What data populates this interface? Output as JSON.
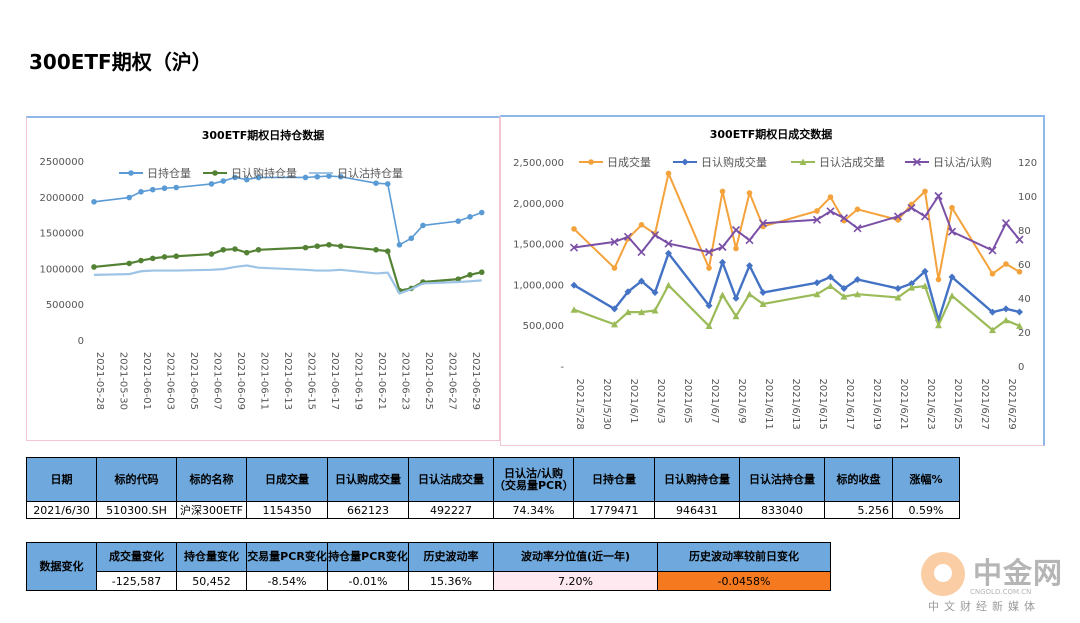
{
  "page": {
    "title": "300ETF期权（沪）"
  },
  "chart_data": [
    {
      "type": "line",
      "title": "300ETF期权日持仓数据",
      "ylim": [
        0,
        2500000
      ],
      "yticks": [
        "0",
        "500000",
        "1000000",
        "1500000",
        "2000000",
        "2500000"
      ],
      "x_tick_labels": [
        "2021-05-28",
        "2021-05-30",
        "2021-06-01",
        "2021-06-03",
        "2021-06-05",
        "2021-06-07",
        "2021-06-09",
        "2021-06-11",
        "2021-06-13",
        "2021-06-15",
        "2021-06-17",
        "2021-06-19",
        "2021-06-21",
        "2021-06-23",
        "2021-06-25",
        "2021-06-27",
        "2021-06-29"
      ],
      "series": [
        {
          "name": "日持仓量",
          "color": "#5b9bd5",
          "x": [
            "2021-05-28",
            "2021-05-31",
            "2021-06-01",
            "2021-06-02",
            "2021-06-03",
            "2021-06-04",
            "2021-06-07",
            "2021-06-08",
            "2021-06-09",
            "2021-06-10",
            "2021-06-11",
            "2021-06-15",
            "2021-06-16",
            "2021-06-17",
            "2021-06-18",
            "2021-06-21",
            "2021-06-22",
            "2021-06-23",
            "2021-06-24",
            "2021-06-25",
            "2021-06-28",
            "2021-06-29",
            "2021-06-30"
          ],
          "values": [
            1930000,
            1990000,
            2070000,
            2100000,
            2120000,
            2130000,
            2180000,
            2220000,
            2270000,
            2240000,
            2270000,
            2270000,
            2280000,
            2290000,
            2280000,
            2190000,
            2180000,
            1330000,
            1420000,
            1600000,
            1660000,
            1720000,
            1780000
          ]
        },
        {
          "name": "日认购持仓量",
          "color": "#548235",
          "x": [
            "2021-05-28",
            "2021-05-31",
            "2021-06-01",
            "2021-06-02",
            "2021-06-03",
            "2021-06-04",
            "2021-06-07",
            "2021-06-08",
            "2021-06-09",
            "2021-06-10",
            "2021-06-11",
            "2021-06-15",
            "2021-06-16",
            "2021-06-17",
            "2021-06-18",
            "2021-06-21",
            "2021-06-22",
            "2021-06-23",
            "2021-06-24",
            "2021-06-25",
            "2021-06-28",
            "2021-06-29",
            "2021-06-30"
          ],
          "values": [
            1020000,
            1070000,
            1110000,
            1140000,
            1160000,
            1170000,
            1200000,
            1260000,
            1270000,
            1220000,
            1260000,
            1290000,
            1310000,
            1330000,
            1310000,
            1260000,
            1240000,
            690000,
            720000,
            810000,
            850000,
            910000,
            946431
          ]
        },
        {
          "name": "日认沽持仓量",
          "color": "#9dc3e6",
          "x": [
            "2021-05-28",
            "2021-05-31",
            "2021-06-01",
            "2021-06-02",
            "2021-06-03",
            "2021-06-04",
            "2021-06-07",
            "2021-06-08",
            "2021-06-09",
            "2021-06-10",
            "2021-06-11",
            "2021-06-15",
            "2021-06-16",
            "2021-06-17",
            "2021-06-18",
            "2021-06-21",
            "2021-06-22",
            "2021-06-23",
            "2021-06-24",
            "2021-06-25",
            "2021-06-28",
            "2021-06-29",
            "2021-06-30"
          ],
          "values": [
            910000,
            920000,
            960000,
            970000,
            970000,
            970000,
            980000,
            990000,
            1020000,
            1040000,
            1010000,
            980000,
            970000,
            970000,
            980000,
            930000,
            940000,
            650000,
            710000,
            790000,
            810000,
            820000,
            833040
          ]
        }
      ]
    },
    {
      "type": "line",
      "title": "300ETF期权日成交数据",
      "ylim": [
        0,
        2500000
      ],
      "yticks": [
        "-",
        "500,000",
        "1,000,000",
        "1,500,000",
        "2,000,000",
        "2,500,000"
      ],
      "y2lim": [
        0,
        120
      ],
      "y2ticks": [
        "0",
        "20",
        "40",
        "60",
        "80",
        "100",
        "120"
      ],
      "x_tick_labels": [
        "2021/5/28",
        "2021/5/30",
        "2021/6/1",
        "2021/6/3",
        "2021/6/5",
        "2021/6/7",
        "2021/6/9",
        "2021/6/11",
        "2021/6/13",
        "2021/6/15",
        "2021/6/17",
        "2021/6/19",
        "2021/6/21",
        "2021/6/23",
        "2021/6/25",
        "2021/6/27",
        "2021/6/29"
      ],
      "series": [
        {
          "name": "日成交量",
          "color": "#f4a23c",
          "axis": "left",
          "x": [
            "2021/5/28",
            "2021/5/31",
            "2021/6/1",
            "2021/6/2",
            "2021/6/3",
            "2021/6/4",
            "2021/6/7",
            "2021/6/8",
            "2021/6/9",
            "2021/6/10",
            "2021/6/11",
            "2021/6/15",
            "2021/6/16",
            "2021/6/17",
            "2021/6/18",
            "2021/6/21",
            "2021/6/22",
            "2021/6/23",
            "2021/6/24",
            "2021/6/25",
            "2021/6/28",
            "2021/6/29",
            "2021/6/30"
          ],
          "values": [
            1680000,
            1200000,
            1560000,
            1730000,
            1620000,
            2360000,
            1200000,
            2140000,
            1440000,
            2120000,
            1710000,
            1900000,
            2070000,
            1780000,
            1920000,
            1790000,
            1980000,
            2140000,
            1060000,
            1940000,
            1130000,
            1250000,
            1154350
          ]
        },
        {
          "name": "日认购成交量",
          "color": "#4472c4",
          "axis": "left",
          "x": [
            "2021/5/28",
            "2021/5/31",
            "2021/6/1",
            "2021/6/2",
            "2021/6/3",
            "2021/6/4",
            "2021/6/7",
            "2021/6/8",
            "2021/6/9",
            "2021/6/10",
            "2021/6/11",
            "2021/6/15",
            "2021/6/16",
            "2021/6/17",
            "2021/6/18",
            "2021/6/21",
            "2021/6/22",
            "2021/6/23",
            "2021/6/24",
            "2021/6/25",
            "2021/6/28",
            "2021/6/29",
            "2021/6/30"
          ],
          "values": [
            990000,
            700000,
            910000,
            1040000,
            900000,
            1380000,
            740000,
            1270000,
            830000,
            1230000,
            900000,
            1020000,
            1090000,
            950000,
            1060000,
            950000,
            1010000,
            1160000,
            560000,
            1090000,
            660000,
            700000,
            662123
          ]
        },
        {
          "name": "日认沽成交量",
          "color": "#9bbb59",
          "axis": "left",
          "x": [
            "2021/5/28",
            "2021/5/31",
            "2021/6/1",
            "2021/6/2",
            "2021/6/3",
            "2021/6/4",
            "2021/6/7",
            "2021/6/8",
            "2021/6/9",
            "2021/6/10",
            "2021/6/11",
            "2021/6/15",
            "2021/6/16",
            "2021/6/17",
            "2021/6/18",
            "2021/6/21",
            "2021/6/22",
            "2021/6/23",
            "2021/6/24",
            "2021/6/25",
            "2021/6/28",
            "2021/6/29",
            "2021/6/30"
          ],
          "values": [
            690000,
            510000,
            660000,
            660000,
            680000,
            990000,
            490000,
            870000,
            610000,
            880000,
            760000,
            880000,
            980000,
            850000,
            880000,
            840000,
            960000,
            980000,
            500000,
            860000,
            440000,
            560000,
            492227
          ]
        },
        {
          "name": "日认沽/认购",
          "color": "#7a4fa6",
          "axis": "right",
          "x": [
            "2021/5/28",
            "2021/5/31",
            "2021/6/1",
            "2021/6/2",
            "2021/6/3",
            "2021/6/4",
            "2021/6/7",
            "2021/6/8",
            "2021/6/9",
            "2021/6/10",
            "2021/6/11",
            "2021/6/15",
            "2021/6/16",
            "2021/6/17",
            "2021/6/18",
            "2021/6/21",
            "2021/6/22",
            "2021/6/23",
            "2021/6/24",
            "2021/6/25",
            "2021/6/28",
            "2021/6/29",
            "2021/6/30"
          ],
          "values": [
            69.7,
            73.0,
            76.0,
            67.0,
            77.0,
            72.0,
            67.0,
            70.0,
            80.0,
            74.0,
            84.0,
            86.0,
            91.0,
            87.0,
            81.0,
            88.0,
            93.0,
            88.0,
            100.0,
            79.0,
            68.0,
            84.0,
            74.34
          ]
        }
      ]
    }
  ],
  "table1": {
    "headers": [
      "日期",
      "标的代码",
      "标的名称",
      "日成交量",
      "日认购成交量",
      "日认沽成交量",
      "日认沽/认购（交易量PCR）",
      "日持仓量",
      "日认购持仓量",
      "日认沽持仓量",
      "标的收盘",
      "涨幅%"
    ],
    "values": [
      "2021/6/30",
      "510300.SH",
      "沪深300ETF",
      "1154350",
      "662123",
      "492227",
      "74.34%",
      "1779471",
      "946431",
      "833040",
      "5.256",
      "0.59%"
    ]
  },
  "table2": {
    "row_header": "数据变化",
    "headers": [
      "成交量变化",
      "持仓量变化",
      "交易量PCR变化",
      "持仓量PCR变化",
      "历史波动率",
      "波动率分位值(近一年)",
      "历史波动率较前日变化"
    ],
    "values": [
      "-125,587",
      "50,452",
      "-8.54%",
      "-0.01%",
      "15.36%",
      "7.20%",
      "-0.0458%"
    ]
  },
  "logo": {
    "name": "中金网",
    "url": "CNGOLD.COM.CN",
    "tagline": "中文财经新媒体"
  }
}
